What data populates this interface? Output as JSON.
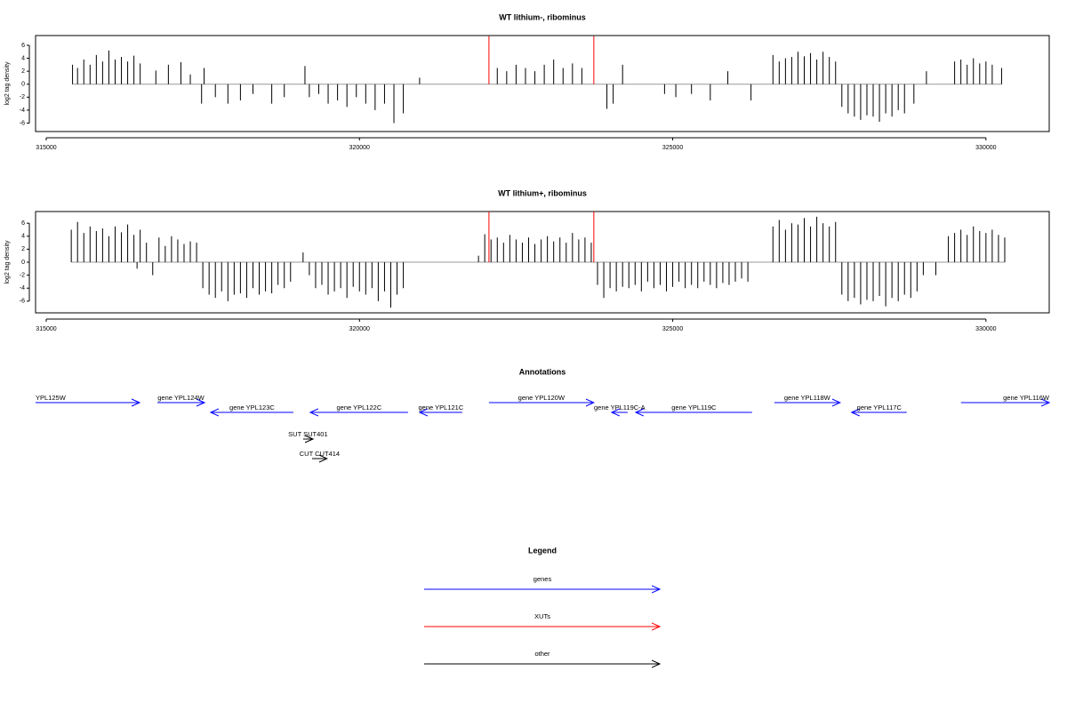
{
  "chart_data": [
    {
      "type": "bar",
      "title": "WT lithium-, ribominus",
      "y_label": "log2 tag density",
      "xlim": [
        314830,
        331010
      ],
      "xticks": [
        315000,
        320000,
        325000,
        330000
      ],
      "ylim": [
        -7.3,
        7.5
      ],
      "yticks": [
        -6,
        -4,
        -2,
        0,
        2,
        4,
        6
      ],
      "color": "#000000",
      "x": [
        315420,
        315500,
        315600,
        315700,
        315800,
        315900,
        316000,
        316100,
        316200,
        316300,
        316400,
        316500,
        316750,
        316950,
        317150,
        317300,
        317480,
        317520,
        317700,
        317900,
        318100,
        318300,
        318600,
        318800,
        319130,
        319200,
        319350,
        319500,
        319650,
        319800,
        319950,
        320100,
        320250,
        320400,
        320550,
        320700,
        320960,
        322200,
        322350,
        322500,
        322650,
        322800,
        322950,
        323100,
        323250,
        323400,
        323550,
        323950,
        324050,
        324200,
        324870,
        325050,
        325300,
        325600,
        325880,
        326250,
        326600,
        326700,
        326800,
        326900,
        327000,
        327100,
        327200,
        327300,
        327400,
        327500,
        327600,
        327700,
        327800,
        327900,
        328000,
        328100,
        328200,
        328300,
        328400,
        328500,
        328600,
        328700,
        328850,
        329050,
        329500,
        329600,
        329700,
        329800,
        329900,
        330000,
        330100,
        330250
      ],
      "values": [
        3,
        2.5,
        3.8,
        3,
        4.5,
        3.5,
        5.2,
        3.8,
        4.2,
        3.5,
        4.4,
        3.2,
        2.1,
        3,
        3.4,
        1.5,
        -3,
        2.5,
        -2,
        -3,
        -2.5,
        -1.5,
        -3,
        -2,
        2.8,
        -2,
        -1.5,
        -3,
        -2.5,
        -3.5,
        -2,
        -3,
        -4,
        -3,
        -6,
        -4.5,
        1,
        2.5,
        2,
        3,
        2.5,
        2,
        3,
        3.8,
        2.5,
        3.2,
        2.5,
        -3.8,
        -3,
        3,
        -1.5,
        -2,
        -1.5,
        -2.5,
        2,
        -2.5,
        4.5,
        3.5,
        4,
        4.2,
        5,
        4.3,
        4.8,
        3.8,
        5,
        4.2,
        3.5,
        -3.5,
        -4.5,
        -5,
        -5.5,
        -4.8,
        -5,
        -5.8,
        -4.5,
        -5,
        -4,
        -4.5,
        -3,
        2,
        3.5,
        3.8,
        3,
        4,
        3.2,
        3.5,
        3,
        2.5
      ],
      "highlight": {
        "color": "#ff0000",
        "x": [
          322067,
          323741
        ],
        "values": [
          7.4,
          7.4
        ]
      }
    },
    {
      "type": "bar",
      "title": "WT lithium+, ribominus",
      "y_label": "log2 tag density",
      "xlim": [
        314830,
        331010
      ],
      "xticks": [
        315000,
        320000,
        325000,
        330000
      ],
      "ylim": [
        -7.8,
        7.8
      ],
      "yticks": [
        -6,
        -4,
        -2,
        0,
        2,
        4,
        6
      ],
      "color": "#000000",
      "x": [
        315400,
        315500,
        315600,
        315700,
        315800,
        315900,
        316000,
        316100,
        316200,
        316300,
        316400,
        316450,
        316500,
        316600,
        316700,
        316800,
        316900,
        317000,
        317100,
        317200,
        317300,
        317400,
        317500,
        317600,
        317700,
        317800,
        317900,
        318000,
        318100,
        318200,
        318300,
        318400,
        318500,
        318600,
        318700,
        318800,
        318900,
        319100,
        319200,
        319300,
        319400,
        319500,
        319600,
        319700,
        319800,
        319900,
        320000,
        320100,
        320200,
        320300,
        320400,
        320500,
        320600,
        320700,
        321900,
        322000,
        322100,
        322200,
        322300,
        322400,
        322500,
        322600,
        322700,
        322800,
        322900,
        323000,
        323100,
        323200,
        323300,
        323400,
        323500,
        323600,
        323700,
        323800,
        323900,
        324000,
        324100,
        324200,
        324300,
        324400,
        324500,
        324600,
        324700,
        324800,
        324900,
        325000,
        325100,
        325200,
        325300,
        325400,
        325500,
        325600,
        325700,
        325800,
        325900,
        326000,
        326100,
        326200,
        326600,
        326700,
        326800,
        326900,
        327000,
        327100,
        327200,
        327300,
        327400,
        327500,
        327600,
        327700,
        327800,
        327900,
        328000,
        328100,
        328200,
        328300,
        328400,
        328500,
        328600,
        328700,
        328800,
        328900,
        329000,
        329200,
        329400,
        329500,
        329600,
        329700,
        329800,
        329900,
        330000,
        330100,
        330200,
        330300
      ],
      "values": [
        5,
        6.2,
        4.5,
        5.5,
        4.8,
        5.2,
        4,
        5.5,
        4.6,
        5.8,
        4.2,
        -1,
        5,
        3,
        -2,
        3.8,
        2.5,
        4,
        3.5,
        2.8,
        3.2,
        3,
        -4,
        -5,
        -5.5,
        -4.5,
        -6,
        -5,
        -4.8,
        -5.5,
        -4,
        -5,
        -4.5,
        -4.8,
        -3.5,
        -4,
        -3,
        1.5,
        -2,
        -4,
        -3.5,
        -5,
        -4.5,
        -4,
        -5.5,
        -3.8,
        -4.5,
        -5,
        -4,
        -6,
        -4.5,
        -7,
        -5,
        -4,
        1,
        4.3,
        3.5,
        3.8,
        3,
        4.2,
        3.5,
        3,
        3.8,
        2.8,
        3.5,
        4,
        3.2,
        3.8,
        3,
        4.5,
        3.5,
        3.8,
        3,
        -3.5,
        -5.5,
        -4,
        -4.5,
        -3.8,
        -4,
        -3.5,
        -4.5,
        -3,
        -4,
        -3.5,
        -4.5,
        -3.8,
        -3,
        -4,
        -3.5,
        -4,
        -3,
        -3.5,
        -4,
        -3.2,
        -3.5,
        -3,
        -2.5,
        -3,
        5.5,
        6.5,
        5,
        6,
        5.8,
        6.8,
        5.5,
        7,
        6,
        5.5,
        6.2,
        -5,
        -6,
        -5.5,
        -6.5,
        -5.8,
        -6,
        -5.2,
        -6.8,
        -5.5,
        -6,
        -5,
        -5.5,
        -4.5,
        -2,
        -2,
        4,
        4.5,
        5,
        4.2,
        5.5,
        4.8,
        4.5,
        5,
        4.2,
        3.8
      ],
      "highlight": {
        "color": "#ff0000",
        "x": [
          322067,
          323741
        ],
        "values": [
          7.8,
          7.8
        ]
      }
    }
  ],
  "annotations": {
    "title": "Annotations",
    "xlim": [
      314830,
      331010
    ],
    "features": [
      {
        "label": "YPL125W",
        "start": 314830,
        "end": 316490,
        "strand": "+",
        "type": "gene",
        "color": "#0000ff"
      },
      {
        "label": "gene YPL124W",
        "start": 316774,
        "end": 317526,
        "strand": "+",
        "type": "gene",
        "color": "#0000ff"
      },
      {
        "label": "gene YPL123C",
        "start": 317625,
        "end": 318945,
        "strand": "-",
        "type": "gene",
        "color": "#0000ff"
      },
      {
        "label": "gene YPL122C",
        "start": 319214,
        "end": 320775,
        "strand": "-",
        "type": "gene",
        "color": "#0000ff"
      },
      {
        "label": "gene YPL121C",
        "start": 320960,
        "end": 321641,
        "strand": "-",
        "type": "gene",
        "color": "#0000ff"
      },
      {
        "label": "gene YPL120W",
        "start": 322067,
        "end": 323741,
        "strand": "+",
        "type": "gene",
        "color": "#0000ff"
      },
      {
        "label": "gene YPL119C-A",
        "start": 324025,
        "end": 324280,
        "strand": "-",
        "type": "gene",
        "color": "#0000ff"
      },
      {
        "label": "gene YPL119C",
        "start": 324408,
        "end": 326267,
        "strand": "-",
        "type": "gene",
        "color": "#0000ff"
      },
      {
        "label": "gene YPL118W",
        "start": 326622,
        "end": 327672,
        "strand": "+",
        "type": "gene",
        "color": "#0000ff"
      },
      {
        "label": "gene YPL117C",
        "start": 327856,
        "end": 328736,
        "strand": "-",
        "type": "gene",
        "color": "#0000ff"
      },
      {
        "label": "gene YPL116W",
        "start": 329602,
        "end": 331010,
        "strand": "+",
        "type": "gene",
        "color": "#0000ff"
      },
      {
        "label": "SUT SUT401",
        "start": 319101,
        "end": 319257,
        "strand": "+",
        "type": "other",
        "color": "#000000"
      },
      {
        "label": "CUT CUT414",
        "start": 319243,
        "end": 319484,
        "strand": "+",
        "type": "other",
        "color": "#000000"
      }
    ]
  },
  "legend": {
    "title": "Legend",
    "entries": [
      {
        "label": "genes",
        "color": "#0000ff"
      },
      {
        "label": "XUTs",
        "color": "#ff0000"
      },
      {
        "label": "other",
        "color": "#000000"
      }
    ]
  }
}
